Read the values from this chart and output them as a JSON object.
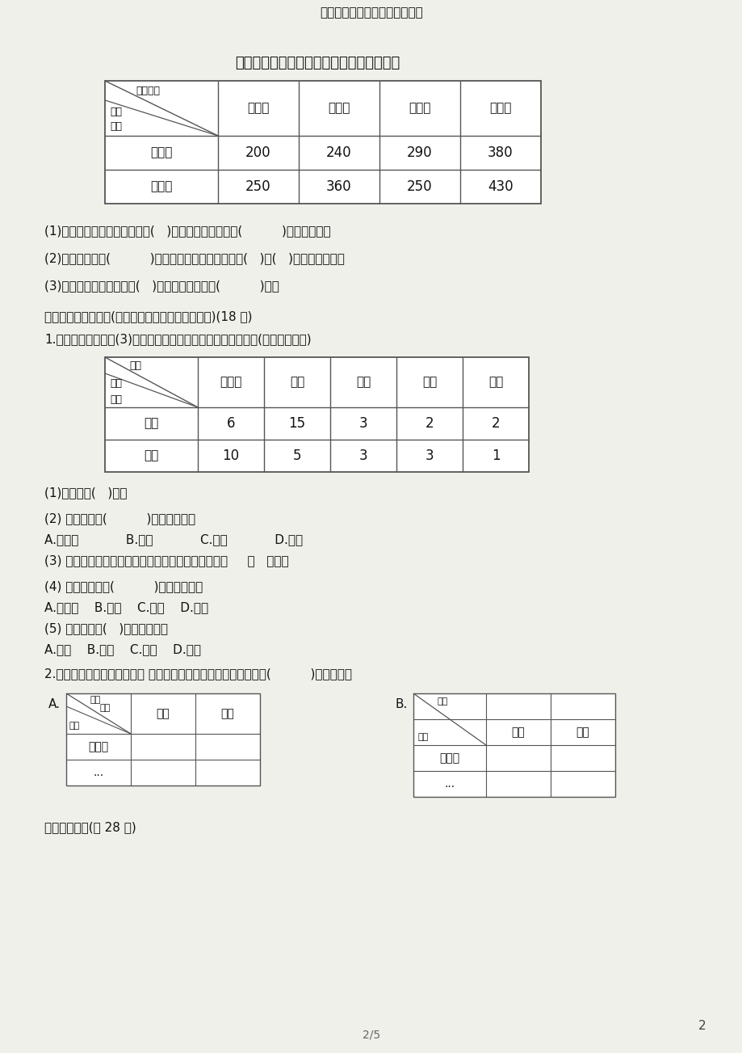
{
  "page_title": "三年级数学下册第３单元测试卷",
  "bg_color": "#f0f0eb",
  "table1_title": "实验学校学生最喜欢的电视节目情况统计表",
  "table1_col_headers": [
    "新闻类",
    "体育类",
    "文娱类",
    "科技类"
  ],
  "table1_row_headers": [
    "小学部",
    "中学部"
  ],
  "table1_corner1": "节目类别",
  "table1_corner2": "人数",
  "table1_corner3": "部门",
  "table1_data": [
    [
      200,
      240,
      290,
      380
    ],
    [
      250,
      360,
      250,
      430
    ]
  ],
  "q1_1": "(1)检查的所有学生中，最喜欢(   )的人数最多，最喜欢(          )的人数最少。",
  "q1_2": "(2)小学部最喜欢(          )的人数最多，中学部最喜欢(   )和(   )的人数同样多。",
  "q1_3": "(3)参加检查的小学生共有(   )人，与中学生相差(          )人。",
  "sec2_title": "二？看统计图选择。(将正确答案的序号填在括号里)(18 分)",
  "sec2_q1_desc": "1.下面是星星小学三(3)班全班同学喜欢吃的蔬菜情况统计表。(每人限选一种)",
  "table2_col_headers": [
    "西红柿",
    "土豆",
    "黄瓜",
    "茄子",
    "其他"
  ],
  "table2_row_headers": [
    "男生",
    "女生"
  ],
  "table2_corner1": "种类",
  "table2_corner2": "人数",
  "table2_corner3": "性别",
  "table2_data": [
    [
      6,
      15,
      3,
      2,
      2
    ],
    [
      10,
      5,
      3,
      3,
      1
    ]
  ],
  "q2_1": "(1)全班共有(   )人。",
  "q2_2_pre": "(2) 全班喜欢吃(          )的人数最多。",
  "q2_2_opts": "A.西红柿            B.土豆            C.黄瓜            D.茄子",
  "q2_3": "(3) 喜欢吃土豆的男生人数是喜欢吃土豆的女生人数的     （   ）倍。",
  "q2_4_pre": "(4) 女生中喜欢吃(          )的人数最多。",
  "q2_4_opts": "A.西红柿    B.土豆    C.黄瓜    D.茄子",
  "q2_5_pre": "(5) 全班喜欢吃(   )的人数最少。",
  "q2_5_opts": "A.茄子    B.土豆    C.黄瓜    D.其他",
  "sec2_q2_desc": "2.同学们要统计全校各年级男 ？女生人数情况，下面表头设计中，(          )较为合理。",
  "tA_corner1": "人数",
  "tA_corner2": "性别",
  "tA_corner3": "年级",
  "tA_col_headers": [
    "男生",
    "女生"
  ],
  "tA_rows": [
    "一年级",
    "..."
  ],
  "tB_corner1": "人数",
  "tB_corner2": "年级",
  "tB_col_headers": [
    "男生",
    "女生"
  ],
  "tB_rows": [
    "一年级",
    "..."
  ],
  "sec3_title": "三？计算题。(共 28 分)",
  "page_footer": "2/5",
  "page_num": "2"
}
